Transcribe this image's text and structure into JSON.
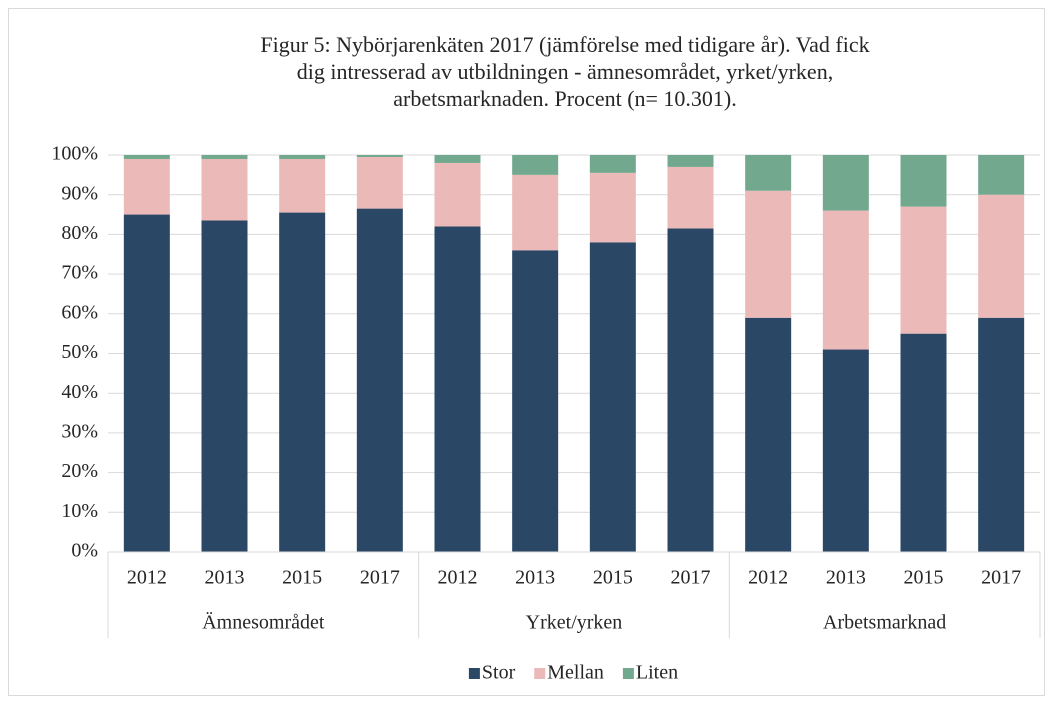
{
  "chart_data": {
    "type": "stacked_bar",
    "title": [
      "Figur 5: Nybörjarenkäten 2017 (jämförelse med tidigare år). Vad fick",
      "dig intresserad av utbildningen - ämnesområdet, yrket/yrken,",
      "arbetsmarknaden. Procent (n= 10.301)."
    ],
    "categories": [
      "2012",
      "2013",
      "2015",
      "2017",
      "2012",
      "2013",
      "2015",
      "2017",
      "2012",
      "2013",
      "2015",
      "2017"
    ],
    "groups": [
      "Ämnesområdet",
      "Yrket/yrken",
      "Arbetsmarknad"
    ],
    "series": [
      {
        "name": "Stor",
        "color": "#2a4765",
        "values": [
          85,
          83.5,
          85.5,
          86.5,
          82,
          76,
          78,
          81.5,
          59,
          51,
          55,
          59
        ]
      },
      {
        "name": "Mellan",
        "color": "#ebbab8",
        "values": [
          14,
          15.5,
          13.5,
          13,
          16,
          19,
          17.5,
          15.5,
          32,
          35,
          32,
          31
        ]
      },
      {
        "name": "Liten",
        "color": "#72a88d",
        "values": [
          1,
          1,
          1,
          0.5,
          2,
          5,
          4.5,
          3,
          9,
          14,
          13,
          10
        ]
      }
    ],
    "ylim": [
      0,
      100
    ],
    "yticks": [
      {
        "value": 0,
        "label": "0%"
      },
      {
        "value": 10,
        "label": "10%"
      },
      {
        "value": 20,
        "label": "20%"
      },
      {
        "value": 30,
        "label": "30%"
      },
      {
        "value": 40,
        "label": "40%"
      },
      {
        "value": 50,
        "label": "50%"
      },
      {
        "value": 60,
        "label": "60%"
      },
      {
        "value": 70,
        "label": "70%"
      },
      {
        "value": 80,
        "label": "80%"
      },
      {
        "value": 90,
        "label": "90%"
      },
      {
        "value": 100,
        "label": "100%"
      }
    ],
    "grid": true,
    "legend": "bottom"
  }
}
